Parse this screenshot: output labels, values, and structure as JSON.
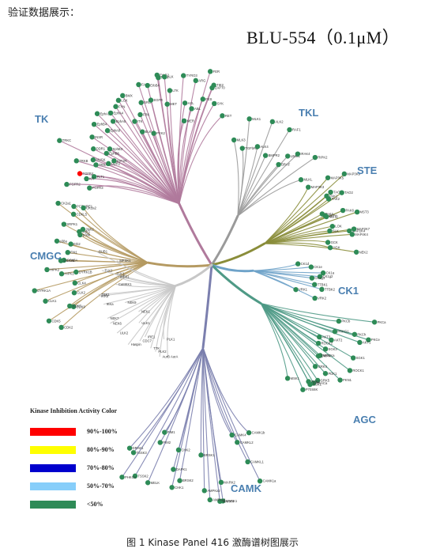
{
  "heading": "验证数据展示：",
  "compound": "BLU-554（0.1μM）",
  "caption": "图 1 Kinase Panel 416 激酶谱树图展示",
  "colors": {
    "tk": "#b07a9c",
    "tkl": "#9a9a9a",
    "ste": "#8a8d3a",
    "ck1": "#6fa3c9",
    "agc": "#4f9a86",
    "camk": "#7b7fae",
    "cmgc": "#b59a62",
    "other": "#c7c7c7",
    "dot": "#2e8b57"
  },
  "groups": [
    {
      "id": "tk",
      "label": "TK"
    },
    {
      "id": "tkl",
      "label": "TKL"
    },
    {
      "id": "ste",
      "label": "STE"
    },
    {
      "id": "ck1",
      "label": "CK1"
    },
    {
      "id": "agc",
      "label": "AGC"
    },
    {
      "id": "camk",
      "label": "CAMK"
    },
    {
      "id": "cmgc",
      "label": "CMGC"
    }
  ],
  "kinases": {
    "tk": [
      "FGFR2",
      "FGFR3",
      "FGFR4",
      "FLT1",
      "KIT",
      "TRKC",
      "TRKB",
      "TRKA",
      "MUSK",
      "DDR2",
      "DDR1",
      "INSR",
      "IGF1R",
      "EphB6",
      "EphB3",
      "EphB4",
      "EphA1",
      "EphA8",
      "EphA5",
      "EphA4",
      "FYN",
      "LCK",
      "BLK",
      "ITK",
      "BMX",
      "FRK",
      "SRC",
      "PYK2",
      "FAK",
      "ErbB4",
      "EGFR",
      "ErbB2",
      "MET",
      "RON",
      "ALK",
      "LTK",
      "AXL",
      "MER",
      "TYRO3",
      "ABL",
      "ARG",
      "FES",
      "FER",
      "SYK",
      "ZAP70",
      "TIE2",
      "RET"
    ],
    "tkl": [
      "MLK3",
      "MLK1",
      "TGFbR1",
      "ALK4",
      "ALK2",
      "BMPR2",
      "RAF1",
      "BRAF",
      "LIMK1",
      "IRAK4",
      "RIPK2",
      "MLKL"
    ],
    "ste": [
      "MAP3K3",
      "MAP3K5",
      "MAP3K9",
      "TAO1",
      "TAO2",
      "PAK1",
      "PAK2",
      "PAK4",
      "PAK6",
      "MST1",
      "MST2",
      "MST3",
      "SLK",
      "LOK",
      "MAP2K4",
      "MAP2K7",
      "MAP4K4",
      "GCK",
      "HGK",
      "NEK2"
    ],
    "ck1": [
      "CK1d",
      "CK1e",
      "CK1a",
      "CK1g2",
      "CK1g3",
      "TTBK1",
      "TTBK2",
      "VRK1",
      "VRK2"
    ],
    "agc": [
      "PKCa",
      "PKCb",
      "PKCh",
      "PKCe",
      "PRKG1",
      "AKT1",
      "AKT2",
      "AKT3",
      "SGK1",
      "SGK3",
      "ROCK1",
      "ROCK2",
      "MRCKa",
      "DMPK",
      "PKN1",
      "PDK1",
      "GRK4",
      "GRK5",
      "PKACa",
      "RSK1",
      "RSK2",
      "P70S6K",
      "MSK1"
    ],
    "camk": [
      "CAMK1a",
      "CAMK1b",
      "CAMKL1",
      "CAMKL2",
      "CAMK4",
      "MARK1",
      "MARK2",
      "MARK4",
      "AMPKa1",
      "AMPKa2",
      "BRSK1",
      "BRSK2",
      "CHK1",
      "CHK2",
      "DAPK1",
      "PIM1",
      "PIM2",
      "MELK",
      "TSSK2",
      "TSSK3",
      "PHKG1",
      "DRAK1"
    ],
    "cmgc": [
      "CDK2",
      "CDK5",
      "CDK9",
      "CDK7",
      "CLK1",
      "CLK2",
      "CLK4",
      "DYRK1A",
      "DYRK1B",
      "HIPK1",
      "HIPK2",
      "GSK3A",
      "GSK3B",
      "Erk1",
      "Erk2",
      "p38a",
      "p38b",
      "JNK1",
      "JNK2",
      "SRPK1",
      "CDKL5",
      "PCTAIRE1",
      "CK2a1",
      "CK2a2"
    ],
    "other": [
      "AurA",
      "AurB",
      "PLK1",
      "PLK2",
      "TTK",
      "IRE1",
      "CDC7",
      "Haspin",
      "ULK1",
      "ULK2",
      "NEK1",
      "NEK6",
      "NEK7",
      "NEK9",
      "IKKa",
      "IKKb",
      "TBK1",
      "CaMKK1",
      "WEE1",
      "TLK1",
      "TLK2",
      "MPSK1",
      "BUB1"
    ]
  },
  "legend": {
    "title": "Kinase Inhibition Activity Color",
    "items": [
      {
        "label": "90%-100%",
        "color": "#ff0000"
      },
      {
        "label": "80%-90%",
        "color": "#ffff00"
      },
      {
        "label": "70%-80%",
        "color": "#0000cd"
      },
      {
        "label": "50%-70%",
        "color": "#87cefa"
      },
      {
        "label": "<50%",
        "color": "#2e8b57"
      }
    ]
  },
  "hits": [
    {
      "kinase": "FGFR4",
      "color": "#ff0000"
    }
  ]
}
